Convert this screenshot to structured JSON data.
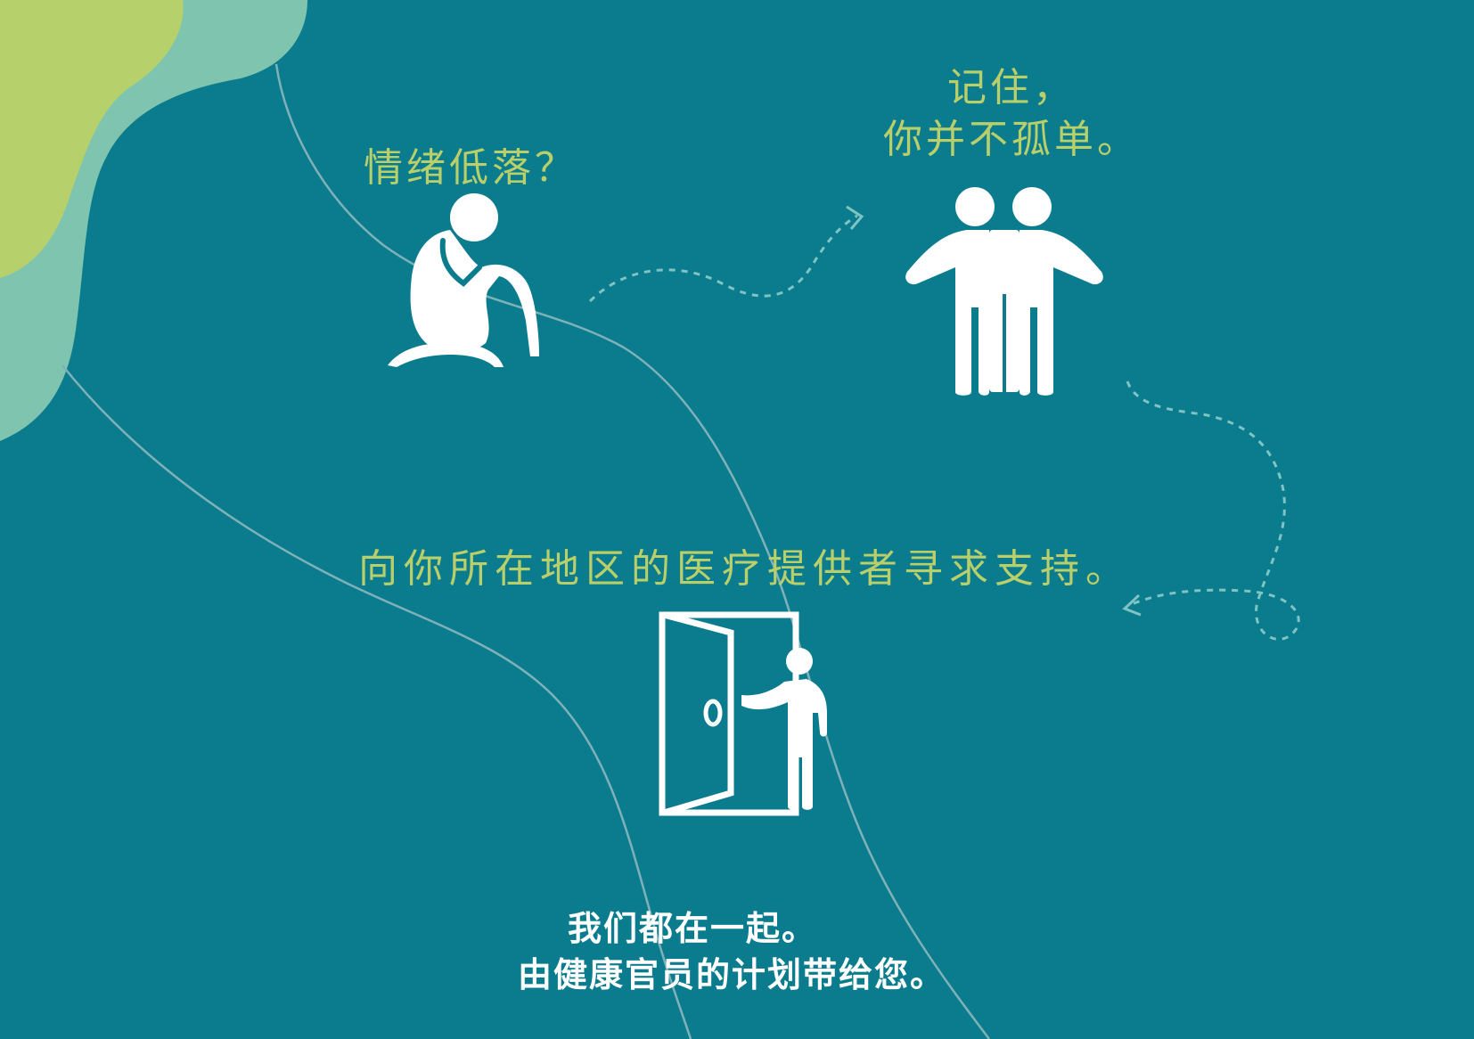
{
  "texts": {
    "feeling_down": "情绪低落？",
    "remember_line1": "记住，",
    "remember_line2": "你并不孤单。",
    "seek_support": "向你所在地区的医疗提供者寻求支持。",
    "footer_line1": "我们都在一起。",
    "footer_line2": "由健康官员的计划带给您。"
  },
  "icons": {
    "sad_person": "sad-person-icon",
    "two_people": "two-people-icon",
    "door_person": "door-person-icon"
  },
  "colors": {
    "background": "#0b7c8e",
    "accent_text": "#b9cf6a",
    "blob_green": "#b6d06b",
    "blob_mint": "#7fc4ae",
    "icon_white": "#ffffff"
  }
}
